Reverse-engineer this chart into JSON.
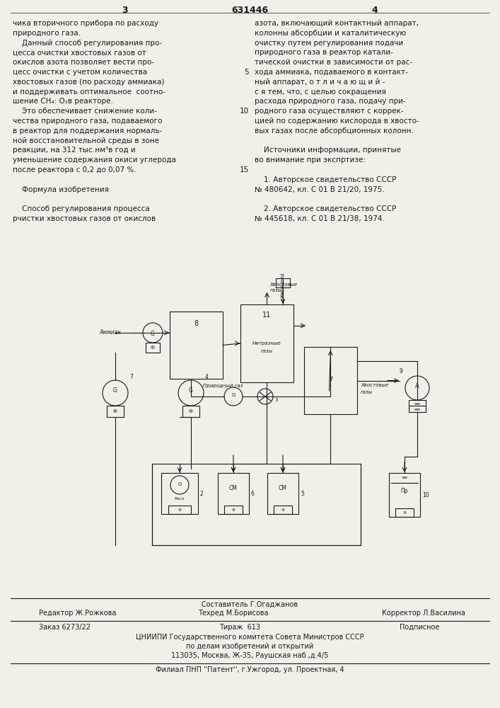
{
  "bg_color": "#f2efe9",
  "text_color": "#1a1a1a",
  "page_width": 7.07,
  "page_height": 10.0,
  "header_number": "631446",
  "col3_number": "3",
  "col4_number": "4",
  "left_col_text": [
    "чика вторичного прибора по расходу",
    "природного газа.",
    "    Данный способ регулирования про-",
    "цесса очистки хвостовых газов от",
    "окислов азота позволяет вести про-",
    "цесс очистки с учетом количества",
    "хвостовых газов (по расходу аммиака)",
    "и поддерживать оптимальное  соотно-",
    "шение CH₄: O₂в реакторе.",
    "    Это обеспечивает снижение коли-",
    "чества природного газа, подаваемого",
    "в реактор для поддержания нормаль-",
    "ной восстановительной среды в зоне",
    "реакции, на 312 тыс.нм³в год и",
    "уменьшение содержания окиси углерода",
    "после реактора с 0,2 до 0,07 %.",
    "",
    "    Формула изобретения",
    "",
    "    Способ регулирования процесса",
    "рчистки хвостовых газов от окислов"
  ],
  "right_col_text": [
    "азота, включающий контактный аппарат,",
    "колонны абсорбции и каталитическую",
    "очистку путем регулирования подачи",
    "природного газа в реактор катали-",
    "тической очистки в зависимости от рас-",
    "хода аммиака, подаваемого в контакт-",
    "ный аппарат, о т л и ч а ю щ и й -",
    "с я тем, что, с целью сокращения",
    "расхода природного газа, подачу при-",
    "родного газа осуществляют с коррек-",
    "цией по содержанию кислорода в хвосто-",
    "вых газах после абсорбционных колонн.",
    "",
    "    Источники информации, принятые",
    "во внимание при экспртизе:",
    "",
    "    1. Авторское свидетельство СССР",
    "№ 480642, кл. С 01 В 21/20, 1975.",
    "",
    "    2. Авторское свидетельство СССР",
    "№ 445618, кл. С 01 В 21/38, 1974."
  ],
  "right_col_margin_labels": [
    [
      6,
      "5"
    ],
    [
      9,
      "10"
    ],
    [
      15,
      "15"
    ]
  ],
  "footer_line1_left": "Редактор Ж.Рожкова",
  "footer_line1_center": "Составитель Г.Огаджанов",
  "footer_line1_center2": "Техред М.Борисова",
  "footer_line1_right": "Корректор Л.Василина",
  "footer_line2_left": "Заказ 6273/22",
  "footer_line2_center": "Тираж  613",
  "footer_line2_right": "Подписное",
  "footer_line3": "ЦНИИПИ Государственного комитета Совета Министров СССР",
  "footer_line4": "по делам изобретений и открытий",
  "footer_line5": "113035, Москва, Ж-35, Раушская наб.,д.4/5",
  "footer_line6": "Филиал ПНП ''Патент'', г.Ужгород, ул. Проектная, 4"
}
